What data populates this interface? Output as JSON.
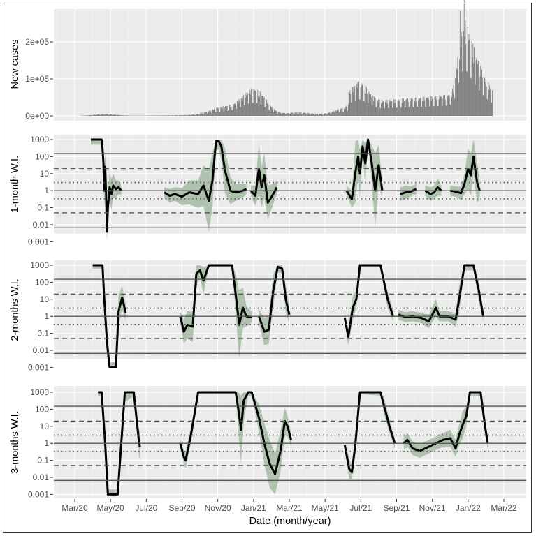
{
  "chart_data": [
    {
      "type": "bar",
      "panel": "new_cases",
      "ylabel": "New cases",
      "yticks": [
        "0e+00",
        "1e+05",
        "2e+05"
      ],
      "ytick_values": [
        0,
        100000,
        200000
      ],
      "ylim": [
        0,
        280000
      ],
      "color": "#7f7f7f",
      "series_description": "Daily new cases, Mar/2020 to Feb/2022",
      "x": [
        "Apr/20",
        "May/20",
        "Jun/20",
        "Jul/20",
        "Aug/20",
        "Sep/20",
        "Oct/20",
        "Nov/20",
        "Dec/20",
        "Jan/21",
        "Feb/21",
        "Mar/21",
        "Apr/21",
        "May/21",
        "Jun/21",
        "Jul/21",
        "Aug/21",
        "Sep/21",
        "Oct/21",
        "Nov/21",
        "Dec/21",
        "Dec/21b",
        "Jan/22",
        "Feb/22"
      ],
      "approx_values": [
        3000,
        5000,
        2500,
        1000,
        1500,
        5000,
        20000,
        28000,
        30000,
        75000,
        35000,
        8000,
        3000,
        3000,
        20000,
        55000,
        35000,
        38000,
        42000,
        45000,
        55000,
        150000,
        273000,
        40000
      ]
    },
    {
      "type": "line",
      "panel": "w1",
      "ylabel": "1-month W.I.",
      "yscale": "log",
      "yticks": [
        "1000",
        "100",
        "10",
        "1",
        "0.1",
        "0.01",
        "0.001"
      ],
      "ylim": [
        0.001,
        1000
      ],
      "line_color": "#000000",
      "band_color": "#a3bba3"
    },
    {
      "type": "line",
      "panel": "w2",
      "ylabel": "2-months W.I.",
      "yscale": "log",
      "yticks": [
        "1000",
        "100",
        "10",
        "1",
        "0.1",
        "0.01",
        "0.001"
      ],
      "ylim": [
        0.001,
        1000
      ],
      "line_color": "#000000",
      "band_color": "#a3bba3"
    },
    {
      "type": "line",
      "panel": "w3",
      "ylabel": "3-months W.I.",
      "yscale": "log",
      "yticks": [
        "1000",
        "100",
        "10",
        "1",
        "0.1",
        "0.01",
        "0.001"
      ],
      "ylim": [
        0.001,
        1000
      ],
      "line_color": "#000000",
      "band_color": "#a3bba3"
    }
  ],
  "reference_lines": [
    {
      "value": 150,
      "style": "solid"
    },
    {
      "value": 20,
      "style": "dashed"
    },
    {
      "value": 3,
      "style": "dotted"
    },
    {
      "value": 1,
      "style": "solid"
    },
    {
      "value": 0.3333,
      "style": "dotted"
    },
    {
      "value": 0.05,
      "style": "dashed"
    },
    {
      "value": 0.00667,
      "style": "solid"
    }
  ],
  "xaxis": {
    "title": "Date (month/year)",
    "ticks": [
      "Mar/20",
      "May/20",
      "Jul/20",
      "Sep/20",
      "Nov/20",
      "Jan/21",
      "Mar/21",
      "May/21",
      "Jul/21",
      "Sep/21",
      "Nov/21",
      "Jan/22",
      "Mar/22"
    ]
  },
  "panels": {
    "p0": {
      "ylabel": "New cases",
      "ticks": [
        "2e+05",
        "1e+05",
        "0e+00"
      ]
    },
    "p1": {
      "ylabel": "1-month W.I."
    },
    "p2": {
      "ylabel": "2-months W.I."
    },
    "p3": {
      "ylabel": "3-months W.I."
    },
    "log_ticks": [
      "1000",
      "100",
      "10",
      "1",
      "0.1",
      "0.01",
      "0.001"
    ]
  },
  "colors": {
    "panel_bg": "#ebebeb",
    "grid": "#ffffff",
    "bars": "#7f7f7f",
    "band": "#a3bba3",
    "line": "#000000",
    "ref": "#555555"
  }
}
